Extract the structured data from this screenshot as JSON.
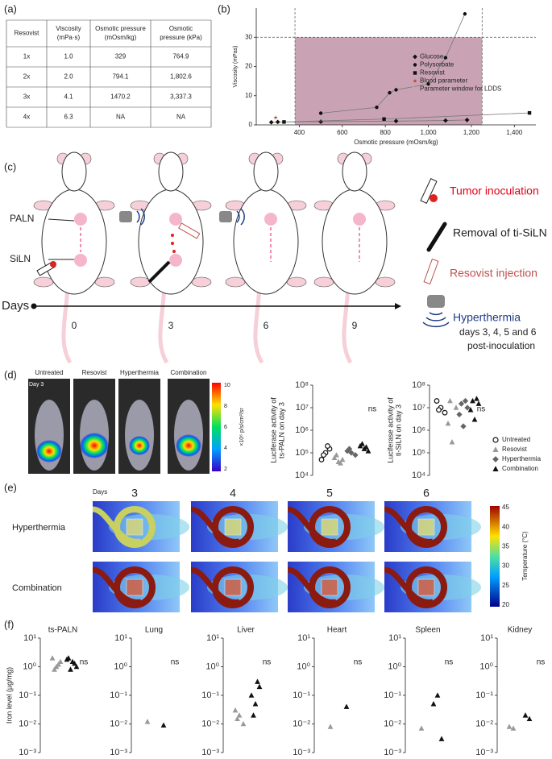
{
  "panel_labels": [
    "(a)",
    "(b)",
    "(c)",
    "(d)",
    "(e)",
    "(f)"
  ],
  "table": {
    "header": [
      [
        "Resovist"
      ],
      [
        "Viscosity",
        "(mPa·s)"
      ],
      [
        "Osmotic pressure",
        "(mOsm/kg)"
      ],
      [
        "Osmotic",
        "pressure (kPa)"
      ]
    ],
    "rows": [
      [
        "1x",
        "1.0",
        "329",
        "764.9"
      ],
      [
        "2x",
        "2.0",
        "794.1",
        "1,802.6"
      ],
      [
        "3x",
        "4.1",
        "1470.2",
        "3,337.3"
      ],
      [
        "4x",
        "6.3",
        "NA",
        "NA"
      ]
    ]
  },
  "chart_data": [
    {
      "type": "line",
      "xlabel": "Osmotic pressure (mOsm/kg)",
      "ylabel": "Viscosity (mPas)",
      "xlim": [
        200,
        1500
      ],
      "ylim": [
        0,
        40
      ],
      "xticks": [
        400,
        600,
        800,
        {
          "value": 1000,
          "label": "1,000"
        },
        {
          "value": 1200,
          "label": "1,200"
        },
        {
          "value": 1400,
          "label": "1,400"
        }
      ],
      "yticks": [
        0,
        10,
        20,
        30
      ],
      "legend": "center right",
      "window": {
        "name": "Parameter window for LDDS",
        "color": "#c9a3b4",
        "x": [
          380,
          1250
        ],
        "y": [
          0,
          30
        ]
      },
      "series": [
        {
          "name": "Glucose",
          "color": "#111111",
          "marker": "diamond",
          "line": true,
          "x": [
            270,
            300,
            500,
            850,
            1080,
            1180
          ],
          "values": [
            0.9,
            1.0,
            1.1,
            1.3,
            1.5,
            1.7
          ]
        },
        {
          "name": "Polysorbate",
          "color": "#111111",
          "marker": "circle",
          "line": true,
          "x": [
            500,
            760,
            820,
            850,
            1000,
            1080,
            1170
          ],
          "values": [
            4,
            6,
            11,
            12,
            14,
            23,
            38
          ]
        },
        {
          "name": "Resovist",
          "color": "#111111",
          "marker": "square",
          "line": true,
          "x": [
            329,
            794.1,
            1470.2
          ],
          "values": [
            1.0,
            2.0,
            4.1
          ]
        },
        {
          "name": "Blood parameter",
          "color": "#c0392b",
          "marker": "star",
          "line": false,
          "x": [
            290
          ],
          "values": [
            2.5
          ]
        }
      ]
    },
    {
      "type": "strip",
      "ylabel": [
        "Luciferase activity of",
        "ts-PALN on day 3"
      ],
      "log": true,
      "ylim": [
        10000,
        100000000
      ],
      "yticks": [
        {
          "value": 10000,
          "label": "10⁴"
        },
        {
          "value": 100000,
          "label": "10⁵"
        },
        {
          "value": 1000000,
          "label": "10⁶"
        },
        {
          "value": 10000000,
          "label": "10⁷"
        },
        {
          "value": 100000000,
          "label": "10⁸"
        }
      ],
      "annotation": "ns",
      "series": [
        {
          "color": "#111111",
          "marker": "open-circle",
          "values": [
            100000,
            50000,
            150000,
            80000,
            200000
          ]
        },
        {
          "color": "#9a9a9a",
          "marker": "triangle",
          "values": [
            40000,
            60000,
            50000,
            80000,
            35000
          ]
        },
        {
          "color": "#666666",
          "marker": "diamond",
          "values": [
            100000,
            120000,
            80000,
            150000
          ]
        },
        {
          "color": "#111111",
          "marker": "triangle",
          "values": [
            150000,
            200000,
            120000,
            250000,
            180000
          ]
        }
      ]
    },
    {
      "type": "strip",
      "ylabel": [
        "Luciferase activity of",
        "ti-SiLN on day 3"
      ],
      "log": true,
      "ylim": [
        10000,
        100000000
      ],
      "yticks": [
        {
          "value": 10000,
          "label": "10⁴"
        },
        {
          "value": 100000,
          "label": "10⁵"
        },
        {
          "value": 1000000,
          "label": "10⁶"
        },
        {
          "value": 10000000,
          "label": "10⁷"
        },
        {
          "value": 100000000,
          "label": "10⁸"
        }
      ],
      "annotation": "ns",
      "legend": "right",
      "series": [
        {
          "name": "Untreated",
          "color": "#111111",
          "marker": "open-circle",
          "values": [
            10000000,
            20000000,
            6000000,
            8000000
          ]
        },
        {
          "name": "Resovist",
          "color": "#9a9a9a",
          "marker": "triangle",
          "values": [
            300000,
            2000000,
            10000000,
            20000000
          ]
        },
        {
          "name": "Hyperthermia",
          "color": "#666666",
          "marker": "diamond",
          "values": [
            1500000,
            5000000,
            10000000,
            15000000,
            20000000
          ]
        },
        {
          "name": "Combination",
          "color": "#111111",
          "marker": "triangle",
          "values": [
            3000000,
            8000000,
            15000000,
            20000000,
            25000000
          ]
        }
      ]
    },
    {
      "type": "strip",
      "title": "ts-PALN",
      "ylabel": [
        "Iron level (µg/mg)"
      ],
      "log": true,
      "ylim": [
        0.001,
        10
      ],
      "yticks": [
        {
          "value": 0.001,
          "label": "10⁻³"
        },
        {
          "value": 0.01,
          "label": "10⁻²"
        },
        {
          "value": 0.1,
          "label": "10⁻¹"
        },
        {
          "value": 1,
          "label": "10⁰"
        },
        {
          "value": 10,
          "label": "10¹"
        }
      ],
      "annotation": "ns",
      "series": [
        {
          "color": "#9a9a9a",
          "marker": "triangle",
          "values": [
            1,
            2,
            1.5,
            0.8,
            1.2
          ]
        },
        {
          "color": "#111111",
          "marker": "triangle",
          "values": [
            1.5,
            2,
            1,
            0.8,
            1.3,
            1.8
          ]
        }
      ]
    },
    {
      "type": "strip",
      "title": "Lung",
      "log": true,
      "ylim": [
        0.001,
        10
      ],
      "yticks": [
        {
          "value": 0.001,
          "label": "10⁻³"
        },
        {
          "value": 0.01,
          "label": "10⁻²"
        },
        {
          "value": 0.1,
          "label": "10⁻¹"
        },
        {
          "value": 1,
          "label": "10⁰"
        },
        {
          "value": 10,
          "label": "10¹"
        }
      ],
      "annotation": "ns",
      "series": [
        {
          "color": "#9a9a9a",
          "marker": "triangle",
          "values": [
            0.012
          ]
        },
        {
          "color": "#111111",
          "marker": "triangle",
          "values": [
            0.009
          ]
        }
      ]
    },
    {
      "type": "strip",
      "title": "Liver",
      "log": true,
      "ylim": [
        0.001,
        10
      ],
      "yticks": [
        {
          "value": 0.001,
          "label": "10⁻³"
        },
        {
          "value": 0.01,
          "label": "10⁻²"
        },
        {
          "value": 0.1,
          "label": "10⁻¹"
        },
        {
          "value": 1,
          "label": "10⁰"
        },
        {
          "value": 10,
          "label": "10¹"
        }
      ],
      "annotation": "ns",
      "series": [
        {
          "color": "#9a9a9a",
          "marker": "triangle",
          "values": [
            0.02,
            0.03,
            0.01,
            0.015
          ]
        },
        {
          "color": "#111111",
          "marker": "triangle",
          "values": [
            0.05,
            0.1,
            0.2,
            0.02,
            0.3
          ]
        }
      ]
    },
    {
      "type": "strip",
      "title": "Heart",
      "log": true,
      "ylim": [
        0.001,
        10
      ],
      "yticks": [
        {
          "value": 0.001,
          "label": "10⁻³"
        },
        {
          "value": 0.01,
          "label": "10⁻²"
        },
        {
          "value": 0.1,
          "label": "10⁻¹"
        },
        {
          "value": 1,
          "label": "10⁰"
        },
        {
          "value": 10,
          "label": "10¹"
        }
      ],
      "annotation": "ns",
      "series": [
        {
          "color": "#9a9a9a",
          "marker": "triangle",
          "values": [
            0.008
          ]
        },
        {
          "color": "#111111",
          "marker": "triangle",
          "values": [
            0.04
          ]
        }
      ]
    },
    {
      "type": "strip",
      "title": "Spleen",
      "log": true,
      "ylim": [
        0.001,
        10
      ],
      "yticks": [
        {
          "value": 0.001,
          "label": "10⁻³"
        },
        {
          "value": 0.01,
          "label": "10⁻²"
        },
        {
          "value": 0.1,
          "label": "10⁻¹"
        },
        {
          "value": 1,
          "label": "10⁰"
        },
        {
          "value": 10,
          "label": "10¹"
        }
      ],
      "annotation": "ns",
      "series": [
        {
          "color": "#9a9a9a",
          "marker": "triangle",
          "values": [
            0.007
          ]
        },
        {
          "color": "#111111",
          "marker": "triangle",
          "values": [
            0.1,
            0.05,
            0.003
          ]
        }
      ]
    },
    {
      "type": "strip",
      "title": "Kidney",
      "log": true,
      "ylim": [
        0.001,
        10
      ],
      "yticks": [
        {
          "value": 0.001,
          "label": "10⁻³"
        },
        {
          "value": 0.01,
          "label": "10⁻²"
        },
        {
          "value": 0.1,
          "label": "10⁻¹"
        },
        {
          "value": 1,
          "label": "10⁰"
        },
        {
          "value": 10,
          "label": "10¹"
        }
      ],
      "annotation": "ns",
      "series": [
        {
          "color": "#9a9a9a",
          "marker": "triangle",
          "values": [
            0.007,
            0.008
          ]
        },
        {
          "color": "#111111",
          "marker": "triangle",
          "values": [
            0.015,
            0.02
          ]
        }
      ]
    }
  ],
  "diagram": {
    "left_labels": [
      "PALN",
      "SiLN"
    ],
    "timeline": {
      "label": "Days",
      "days": [
        "0",
        "3",
        "6",
        "9"
      ]
    },
    "legend": [
      "Tumor inoculation",
      "Removal of ti-SiLN",
      "Resovist injection",
      "Hyperthermia",
      "days 3, 4, 5 and 6",
      "post-inoculation"
    ]
  },
  "imaging_d": {
    "day": "Day 3",
    "groups": [
      "Untreated",
      "Resovist",
      "Hyperthermia",
      "Combination"
    ],
    "colorbar": {
      "ticks": [
        "10",
        "8",
        "6",
        "4",
        "2"
      ],
      "label": "×10⁶ p/s/cm²/sr"
    }
  },
  "imaging_e": {
    "days_label": "Days",
    "days": [
      "3",
      "4",
      "5",
      "6"
    ],
    "rows": [
      "Hyperthermia",
      "Combination"
    ],
    "colorbar": {
      "ticks": [
        "45",
        "40",
        "35",
        "30",
        "25",
        "20"
      ],
      "label": "Temperature (°C)"
    }
  }
}
